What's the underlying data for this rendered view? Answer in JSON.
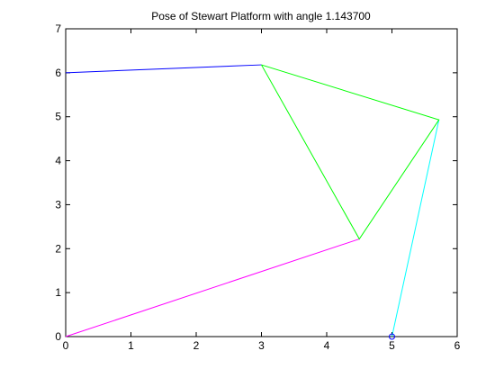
{
  "chart_data": {
    "type": "line",
    "title": "Pose of Stewart Platform with angle 1.143700",
    "xlabel": "",
    "ylabel": "",
    "xlim": [
      0,
      6
    ],
    "ylim": [
      0,
      7
    ],
    "xticks": [
      0,
      1,
      2,
      3,
      4,
      5,
      6
    ],
    "yticks": [
      0,
      1,
      2,
      3,
      4,
      5,
      6,
      7
    ],
    "xtick_labels": [
      "0",
      "1",
      "2",
      "3",
      "4",
      "5",
      "6"
    ],
    "ytick_labels": [
      "0",
      "1",
      "2",
      "3",
      "4",
      "5",
      "6",
      "7"
    ],
    "grid": false,
    "box": true,
    "series": [
      {
        "color": "#0000ff",
        "points": [
          [
            0,
            6.0
          ],
          [
            3.0,
            6.18
          ]
        ]
      },
      {
        "color": "#ff00ff",
        "points": [
          [
            0,
            0
          ],
          [
            4.5,
            2.22
          ]
        ]
      },
      {
        "color": "#00ffff",
        "points": [
          [
            5.0,
            0
          ],
          [
            5.72,
            4.93
          ]
        ]
      },
      {
        "color": "#00ff00",
        "points": [
          [
            3.0,
            6.18
          ],
          [
            5.72,
            4.93
          ],
          [
            4.5,
            2.22
          ],
          [
            3.0,
            6.18
          ]
        ]
      }
    ],
    "markers": [
      {
        "x": 5.0,
        "y": 0,
        "color": "#0000ff",
        "shape": "circle"
      }
    ]
  }
}
